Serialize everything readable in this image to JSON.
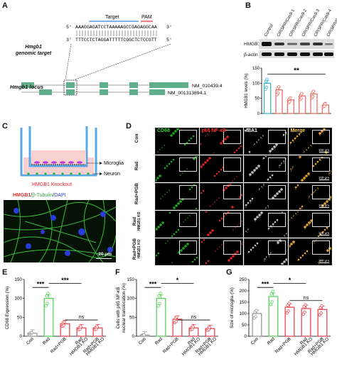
{
  "panels": {
    "A": {
      "label": "A",
      "target_label": "Target",
      "pam_label": "PAM",
      "genomic_target_label": "Hmgb1\ngenomic target",
      "seq_top_5": "5'",
      "seq_top": "AAAGGAGATCCTAAAAAGCCGAGAGGCAA",
      "seq_top_3": "3'",
      "seq_bottom_3": "3'",
      "seq_bottom": "TTTCCTCTAGGATTTTTCGGCTCTCCGTT",
      "seq_bottom_5": "5'",
      "locus_label": "Hmgb1 locus",
      "transcript1": "NM_010439.4",
      "transcript2": "NM_001313894.1"
    },
    "B": {
      "label": "B",
      "lanes": [
        "Control",
        "CRISPR/Cas9-1",
        "CRISPR/Cas9-2",
        "CRISPR/Cas9-3",
        "CRISPR/Cas9-4",
        "CRISPR/Cas9-5"
      ],
      "blot_labels": [
        "HMGB1",
        "β-actin"
      ],
      "chart_data": {
        "type": "bar",
        "ylabel": "HMGB1 levels (%)",
        "ylim": [
          0,
          150
        ],
        "yticks": [
          "0",
          "50",
          "100",
          "150"
        ],
        "values": [
          100,
          78,
          45,
          58,
          65,
          28
        ],
        "significance": "**",
        "colors": [
          "#3fb8c9",
          "#e8706b",
          "#e8706b",
          "#e8706b",
          "#e8706b",
          "#e8706b"
        ]
      }
    },
    "C": {
      "label": "C",
      "insert_labels": [
        "Microglia",
        "Neuron"
      ],
      "bottom_label": "HMGB1 Knockout",
      "stain_hmgb1": "HMGB1",
      "stain_sep1": "/",
      "stain_tubulin": "β-Tubulin",
      "stain_sep2": "/",
      "stain_dapi": "DAPI",
      "scale": "20 μm"
    },
    "D": {
      "label": "D",
      "columns": [
        "CD68",
        "p65 NF-κB",
        "IBA1",
        "Merge"
      ],
      "column_colors": [
        "#3fd13f",
        "#ff3030",
        "#ffffff",
        "#ffd34d"
      ],
      "rows": [
        "Con",
        "Rad",
        "Rad+PGB",
        "Rad\nHMGB1 KO",
        "Rad+PGB\nHMGB1 KO"
      ],
      "scale": "100 μm"
    },
    "E": {
      "label": "E",
      "chart_data": {
        "type": "bar",
        "ylabel": "CD68 Expression (%)",
        "ylim": [
          0,
          150
        ],
        "yticks": [
          "0",
          "50",
          "100",
          "150"
        ],
        "categories": [
          "Con",
          "Rad",
          "Rad+PGB",
          "Rad\nHMGB1 KO",
          "Rad+PGB\nHMGB1 KO"
        ],
        "values": [
          8,
          100,
          33,
          22,
          22
        ],
        "significance": [
          "***",
          "***",
          "ns"
        ]
      }
    },
    "F": {
      "label": "F",
      "chart_data": {
        "type": "bar",
        "ylabel": "Cells with p65 NF-κB\nnuclear translocation (%)",
        "ylim": [
          0,
          150
        ],
        "yticks": [
          "0",
          "50",
          "100",
          "150"
        ],
        "categories": [
          "Con",
          "Rad",
          "Rad+PGB",
          "Rad\nHMGB1 KO",
          "Rad+PGB\nHMGB1 KO"
        ],
        "values": [
          3,
          100,
          45,
          22,
          20
        ],
        "significance": [
          "***",
          "*",
          "ns"
        ]
      }
    },
    "G": {
      "label": "G",
      "chart_data": {
        "type": "bar",
        "ylabel": "Size of microglia (%)",
        "ylim": [
          0,
          250
        ],
        "yticks": [
          "0",
          "50",
          "100",
          "150",
          "200",
          "250"
        ],
        "categories": [
          "Con",
          "Rad",
          "Rad+PGB",
          "Rad\nHMGB1 KO",
          "Rad+PGB\nHMGB1 KO"
        ],
        "values": [
          100,
          175,
          128,
          122,
          118
        ],
        "significance": [
          "***",
          "*",
          "ns"
        ]
      }
    },
    "bar_colors": [
      "#9a9a9a",
      "#56d35b",
      "#e8474f",
      "#e8474f",
      "#e8474f"
    ]
  }
}
